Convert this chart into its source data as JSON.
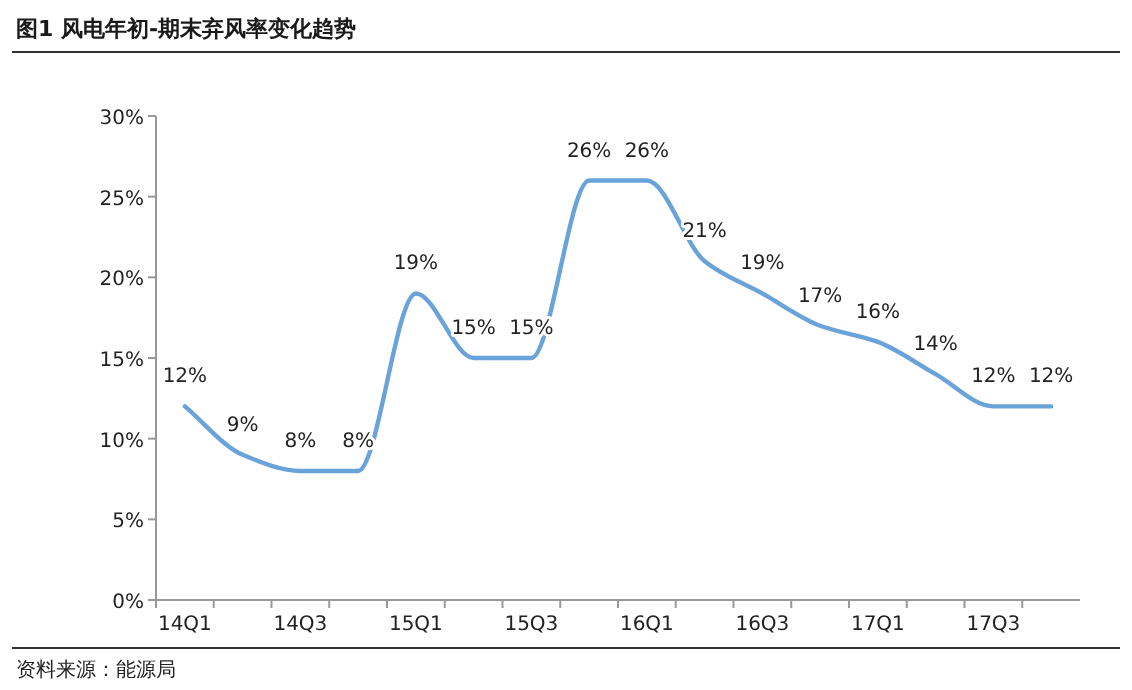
{
  "chart_data": {
    "type": "line",
    "title": "图1  风电年初-期末弃风率变化趋势",
    "categories": [
      "14Q1",
      null,
      "14Q3",
      null,
      "15Q1",
      null,
      "15Q3",
      null,
      "16Q1",
      null,
      "16Q3",
      null,
      "17Q1",
      null,
      "17Q3",
      null
    ],
    "values": [
      12,
      9,
      8,
      8,
      19,
      15,
      15,
      26,
      26,
      21,
      19,
      17,
      16,
      14,
      12,
      12
    ],
    "color": "#6aa3d9",
    "ylim": [
      0,
      30
    ],
    "yticks": [
      {
        "value": 0,
        "label": "0%"
      },
      {
        "value": 5,
        "label": "5%"
      },
      {
        "value": 10,
        "label": "10%"
      },
      {
        "value": 15,
        "label": "15%"
      },
      {
        "value": 20,
        "label": "20%"
      },
      {
        "value": 25,
        "label": "25%"
      },
      {
        "value": 30,
        "label": "30%"
      }
    ],
    "value_labels": [
      "12%",
      "9%",
      "8%",
      "8%",
      "19%",
      "15%",
      "15%",
      "26%",
      "26%",
      "21%",
      "19%",
      "17%",
      "16%",
      "14%",
      "12%",
      "12%"
    ],
    "annotations": [
      "资料来源：能源局"
    ]
  }
}
